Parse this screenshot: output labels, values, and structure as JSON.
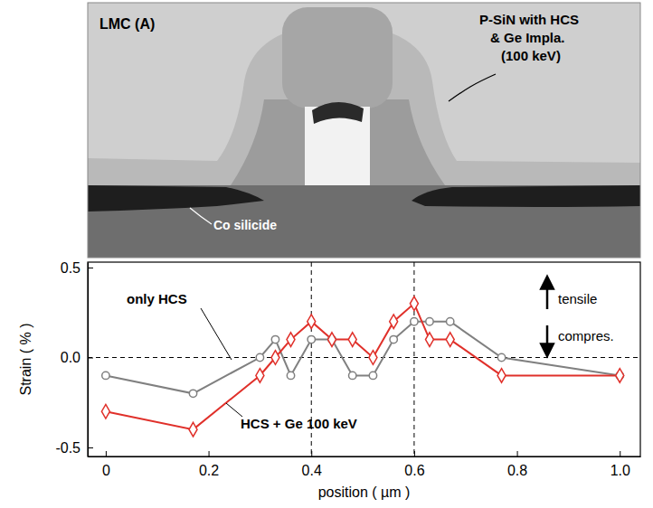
{
  "chart_data": {
    "type": "line",
    "x_label": "position ( µm )",
    "y_label": "Strain ( % )",
    "x": [
      0,
      0.17,
      0.3,
      0.33,
      0.36,
      0.4,
      0.44,
      0.48,
      0.52,
      0.56,
      0.6,
      0.63,
      0.67,
      0.77,
      1.0
    ],
    "series": [
      {
        "name": "only HCS",
        "color": "#808080",
        "marker": "circle",
        "values": [
          -0.1,
          -0.2,
          0,
          0.1,
          -0.1,
          0.1,
          0.1,
          -0.1,
          -0.1,
          0.1,
          0.2,
          0.2,
          0.2,
          0,
          -0.1
        ]
      },
      {
        "name": "HCS + Ge 100 keV",
        "color": "#e0302a",
        "marker": "diamond",
        "values": [
          -0.3,
          -0.4,
          -0.1,
          0,
          0.1,
          0.2,
          0.1,
          0.1,
          0,
          0.2,
          0.3,
          0.1,
          0.1,
          -0.1,
          -0.1
        ]
      }
    ],
    "xlim": [
      -0.035,
      1.04
    ],
    "ylim": [
      -0.55,
      0.53
    ],
    "xticks": [
      0,
      0.2,
      0.4,
      0.6,
      0.8,
      {
        "value": 1,
        "label": "1.0"
      }
    ],
    "yticks": [
      -0.5,
      {
        "value": 0,
        "label": "0.0"
      },
      0.5
    ],
    "vlines": [
      0.4,
      0.6
    ],
    "hlines": [
      0
    ],
    "annotations": [
      "tensile",
      "compres."
    ],
    "grid": false
  },
  "image": {
    "panel_label": "LMC (A)",
    "film_label": [
      "P-SiN with HCS",
      "& Ge Impla.",
      "(100 keV)"
    ],
    "silicide_label": "Co silicide"
  }
}
